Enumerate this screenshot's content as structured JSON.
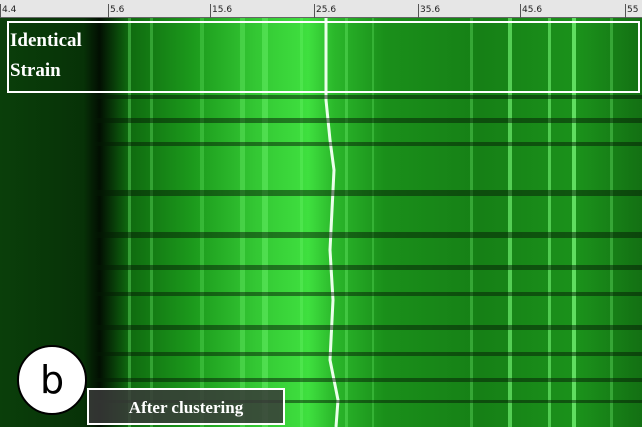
{
  "ruler": {
    "ticks": [
      "4.4",
      "5.6",
      "15.6",
      "25.6",
      "35.6",
      "45.6",
      "55"
    ]
  },
  "labels": {
    "group": [
      "Identical",
      "Strain"
    ],
    "panel": "b",
    "caption": "After clustering"
  }
}
